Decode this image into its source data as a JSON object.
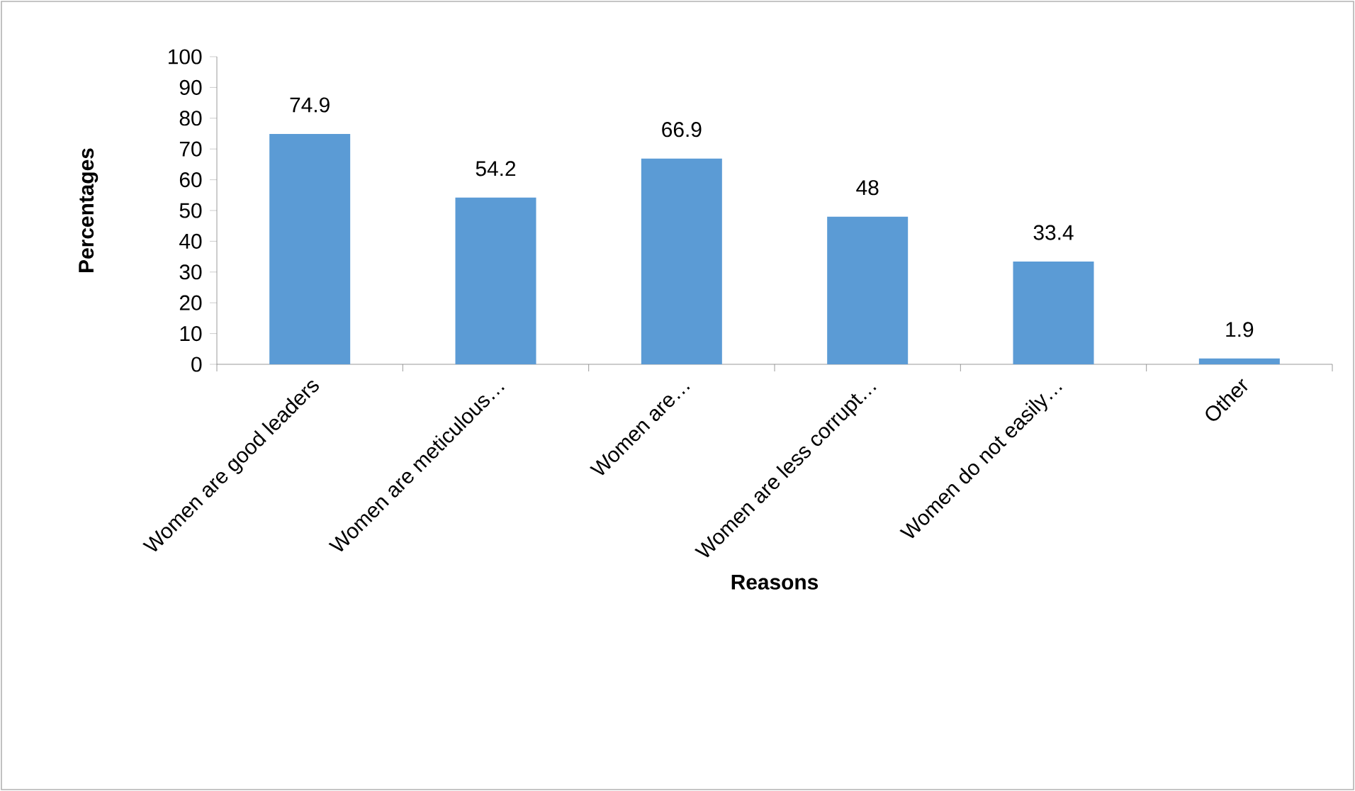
{
  "chart_data": {
    "type": "bar",
    "xlabel": "Reasons",
    "ylabel": "Percentages",
    "categories": [
      "Women are good leaders",
      "Women are meticulous…",
      "Women are…",
      "Women are less corrupt…",
      "Women do not easily…",
      "Other"
    ],
    "values": [
      74.9,
      54.2,
      66.9,
      48,
      33.4,
      1.9
    ],
    "color": "#5b9bd5",
    "ylim": [
      0,
      100
    ],
    "yticks": [
      0,
      10,
      20,
      30,
      40,
      50,
      60,
      70,
      80,
      90,
      100
    ],
    "data_labels": true,
    "grid": false
  }
}
